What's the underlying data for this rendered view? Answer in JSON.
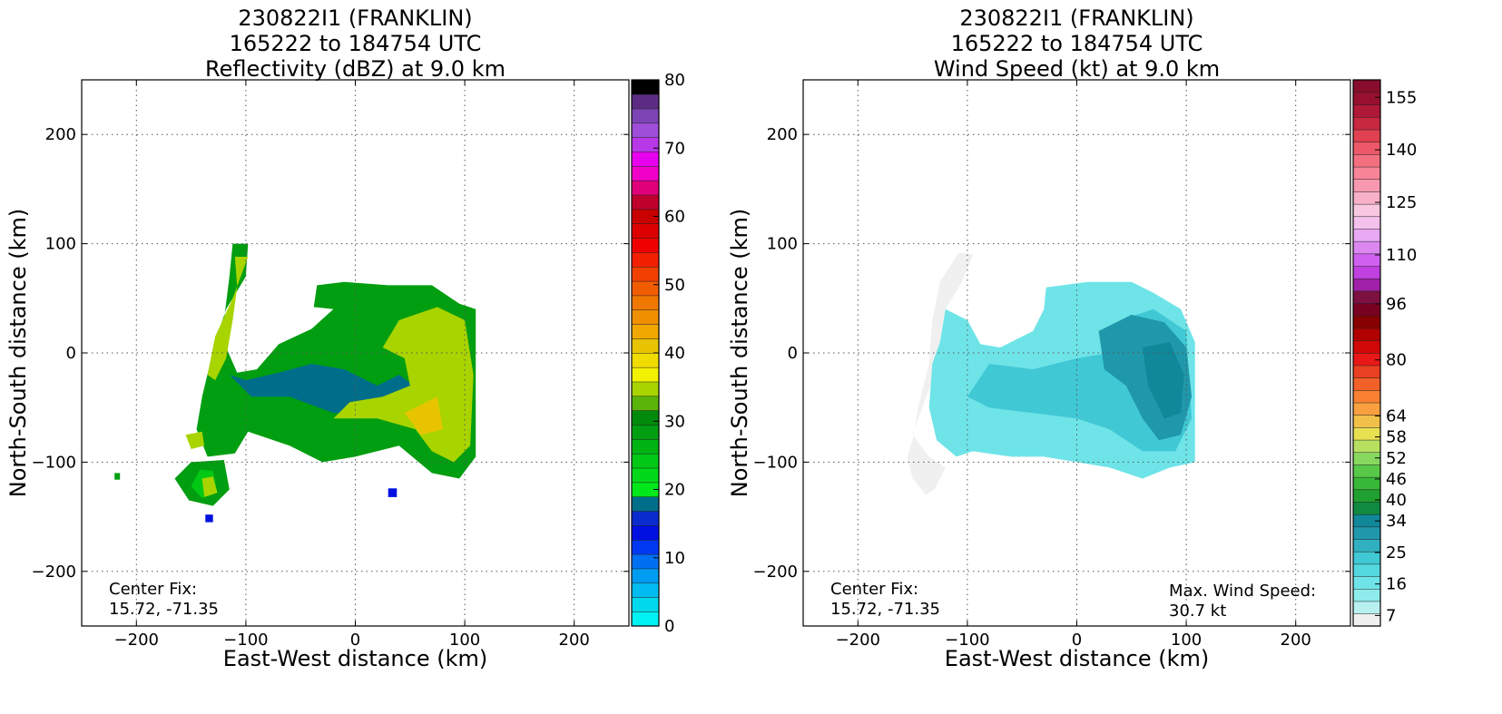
{
  "chart_data": [
    {
      "type": "heatmap",
      "title": [
        "230822I1 (FRANKLIN)",
        "165222 to 184754 UTC",
        "Reflectivity (dBZ) at 9.0 km"
      ],
      "xlabel": "East-West distance (km)",
      "ylabel": "North-South distance (km)",
      "xlim": [
        -250,
        250
      ],
      "ylim": [
        -250,
        250
      ],
      "xticks": [
        -200,
        -100,
        0,
        100,
        200
      ],
      "yticks": [
        -200,
        -100,
        0,
        100,
        200
      ],
      "grid": true,
      "center_fix_label": "Center Fix:",
      "center_fix_value": "15.72, -71.35",
      "colorbar": {
        "min": 0,
        "max": 80,
        "step": 2.5,
        "ticks": [
          0,
          10,
          20,
          30,
          40,
          50,
          60,
          70,
          80
        ],
        "colors": [
          "#00f2f2",
          "#00d8ec",
          "#00bcf0",
          "#009cf2",
          "#0070f2",
          "#0038f2",
          "#0010e0",
          "#0a2ccc",
          "#006e8a",
          "#00e81a",
          "#00d81a",
          "#00c814",
          "#00b414",
          "#009e10",
          "#008a0c",
          "#5ab40a",
          "#a8d400",
          "#f2f200",
          "#f0dc00",
          "#e8c400",
          "#f0a800",
          "#f09000",
          "#f07800",
          "#f25c00",
          "#f24000",
          "#f22000",
          "#f00000",
          "#dc0000",
          "#c80000",
          "#c0002c",
          "#e0007a",
          "#f000c8",
          "#e800f0",
          "#b838e8",
          "#9e4ed8",
          "#7c44b4",
          "#5c2c84",
          "#000000"
        ]
      },
      "field": [
        {
          "level": 13,
          "polygon": [
            [
              -112,
              100
            ],
            [
              -98,
              100
            ],
            [
              -100,
              70
            ],
            [
              -118,
              40
            ],
            [
              -128,
              10
            ],
            [
              -140,
              -40
            ],
            [
              -145,
              -70
            ],
            [
              -135,
              -95
            ],
            [
              -110,
              -92
            ],
            [
              -98,
              -72
            ],
            [
              -60,
              -85
            ],
            [
              -30,
              -100
            ],
            [
              0,
              -95
            ],
            [
              40,
              -85
            ],
            [
              70,
              -110
            ],
            [
              95,
              -115
            ],
            [
              110,
              -95
            ],
            [
              110,
              40
            ],
            [
              95,
              45
            ],
            [
              70,
              62
            ],
            [
              30,
              62
            ],
            [
              -10,
              65
            ],
            [
              -35,
              62
            ],
            [
              -38,
              42
            ],
            [
              -20,
              40
            ],
            [
              -40,
              22
            ],
            [
              -70,
              8
            ],
            [
              -90,
              -15
            ],
            [
              -108,
              -18
            ],
            [
              -118,
              5
            ],
            [
              -120,
              30
            ],
            [
              -115,
              70
            ]
          ]
        },
        {
          "level": 8,
          "polygon": [
            [
              -100,
              -25
            ],
            [
              -70,
              -18
            ],
            [
              -40,
              -10
            ],
            [
              -10,
              -15
            ],
            [
              20,
              -30
            ],
            [
              40,
              -20
            ],
            [
              60,
              -35
            ],
            [
              25,
              -55
            ],
            [
              -20,
              -55
            ],
            [
              -60,
              -40
            ],
            [
              -95,
              -40
            ],
            [
              -115,
              -20
            ]
          ]
        },
        {
          "level": 13,
          "polygon": [
            [
              -150,
              -100
            ],
            [
              -120,
              -98
            ],
            [
              -115,
              -125
            ],
            [
              -130,
              -140
            ],
            [
              -152,
              -135
            ],
            [
              -165,
              -115
            ]
          ]
        },
        {
          "level": 11,
          "polygon": [
            [
              -142,
              -107
            ],
            [
              -130,
              -108
            ],
            [
              -126,
              -128
            ],
            [
              -140,
              -133
            ],
            [
              -150,
              -122
            ]
          ]
        },
        {
          "level": 6,
          "polygon": [
            [
              -137,
              -148
            ],
            [
              -130,
              -148
            ],
            [
              -130,
              -155
            ],
            [
              -137,
              -155
            ]
          ]
        },
        {
          "level": 6,
          "polygon": [
            [
              30,
              -124
            ],
            [
              38,
              -124
            ],
            [
              38,
              -132
            ],
            [
              30,
              -132
            ]
          ]
        },
        {
          "level": 13,
          "polygon": [
            [
              -220,
              -110
            ],
            [
              -215,
              -110
            ],
            [
              -215,
              -116
            ],
            [
              -220,
              -116
            ]
          ]
        },
        {
          "level": 16,
          "polygon": [
            [
              -110,
              88
            ],
            [
              -98,
              88
            ],
            [
              -112,
              50
            ],
            [
              -128,
              15
            ],
            [
              -135,
              -20
            ],
            [
              -128,
              -25
            ],
            [
              -118,
              -5
            ],
            [
              -112,
              30
            ],
            [
              -108,
              60
            ]
          ]
        },
        {
          "level": 16,
          "polygon": [
            [
              40,
              30
            ],
            [
              75,
              42
            ],
            [
              100,
              30
            ],
            [
              108,
              -20
            ],
            [
              105,
              -85
            ],
            [
              90,
              -100
            ],
            [
              70,
              -90
            ],
            [
              55,
              -70
            ],
            [
              20,
              -60
            ],
            [
              -20,
              -60
            ],
            [
              -5,
              -45
            ],
            [
              25,
              -40
            ],
            [
              50,
              -30
            ],
            [
              45,
              -5
            ],
            [
              25,
              5
            ]
          ]
        },
        {
          "level": 16,
          "polygon": [
            [
              -155,
              -75
            ],
            [
              -140,
              -72
            ],
            [
              -138,
              -85
            ],
            [
              -150,
              -88
            ]
          ]
        },
        {
          "level": 16,
          "polygon": [
            [
              -140,
              -115
            ],
            [
              -130,
              -113
            ],
            [
              -126,
              -128
            ],
            [
              -138,
              -132
            ]
          ]
        },
        {
          "level": 19,
          "polygon": [
            [
              45,
              -55
            ],
            [
              75,
              -40
            ],
            [
              80,
              -70
            ],
            [
              60,
              -75
            ]
          ]
        }
      ]
    },
    {
      "type": "heatmap",
      "title": [
        "230822I1 (FRANKLIN)",
        "165222 to 184754 UTC",
        "Wind Speed (kt) at 9.0 km"
      ],
      "xlabel": "East-West distance (km)",
      "ylabel": "North-South distance (km)",
      "xlim": [
        -250,
        250
      ],
      "ylim": [
        -250,
        250
      ],
      "xticks": [
        -200,
        -100,
        0,
        100,
        200
      ],
      "yticks": [
        -200,
        -100,
        0,
        100,
        200
      ],
      "grid": true,
      "center_fix_label": "Center Fix:",
      "center_fix_value": "15.72, -71.35",
      "max_wind_label": "Max. Wind Speed:",
      "max_wind_value": "30.7 kt",
      "colorbar": {
        "min": 4,
        "max": 160,
        "step": 3,
        "ticks": [
          7,
          16,
          25,
          34,
          40,
          46,
          52,
          58,
          64,
          80,
          96,
          110,
          125,
          140,
          155
        ],
        "colors": [
          "#f0f0f0",
          "#b8f0f0",
          "#8eecec",
          "#6ee4e8",
          "#54d8e0",
          "#40c8d4",
          "#30b0c0",
          "#2098ac",
          "#10889a",
          "#108a40",
          "#20a030",
          "#38b838",
          "#58c848",
          "#88d860",
          "#b8e060",
          "#e8e050",
          "#f0c048",
          "#f8a040",
          "#f88030",
          "#f06028",
          "#e84020",
          "#e81818",
          "#d00808",
          "#b00000",
          "#880000",
          "#780020",
          "#7c1040",
          "#a020a8",
          "#c040e0",
          "#d060f0",
          "#dc88f0",
          "#e8a8f4",
          "#f4c0ec",
          "#f8c8e0",
          "#f8b0c8",
          "#f898b0",
          "#f88498",
          "#f47080",
          "#ec5868",
          "#e04050",
          "#c82840",
          "#b01838",
          "#981030",
          "#880c2c"
        ]
      },
      "field": [
        {
          "level": 0,
          "polygon": [
            [
              -108,
              92
            ],
            [
              -95,
              90
            ],
            [
              -105,
              65
            ],
            [
              -120,
              40
            ],
            [
              -125,
              10
            ],
            [
              -130,
              -20
            ],
            [
              -145,
              -60
            ],
            [
              -150,
              -75
            ],
            [
              -135,
              -95
            ],
            [
              -120,
              -105
            ],
            [
              -130,
              -125
            ],
            [
              -138,
              -130
            ],
            [
              -150,
              -115
            ],
            [
              -155,
              -95
            ],
            [
              -150,
              -80
            ],
            [
              -145,
              -50
            ],
            [
              -135,
              -10
            ],
            [
              -132,
              30
            ],
            [
              -125,
              65
            ]
          ]
        },
        {
          "level": 3,
          "polygon": [
            [
              -120,
              40
            ],
            [
              -100,
              30
            ],
            [
              -88,
              8
            ],
            [
              -70,
              5
            ],
            [
              -40,
              20
            ],
            [
              -30,
              40
            ],
            [
              -28,
              60
            ],
            [
              10,
              65
            ],
            [
              50,
              65
            ],
            [
              70,
              55
            ],
            [
              95,
              40
            ],
            [
              108,
              10
            ],
            [
              108,
              -100
            ],
            [
              85,
              -105
            ],
            [
              60,
              -115
            ],
            [
              30,
              -105
            ],
            [
              0,
              -100
            ],
            [
              -30,
              -95
            ],
            [
              -60,
              -95
            ],
            [
              -95,
              -90
            ],
            [
              -110,
              -95
            ],
            [
              -128,
              -80
            ],
            [
              -135,
              -50
            ],
            [
              -132,
              -10
            ],
            [
              -125,
              10
            ]
          ]
        },
        {
          "level": 5,
          "polygon": [
            [
              -80,
              -10
            ],
            [
              -40,
              -15
            ],
            [
              0,
              -5
            ],
            [
              30,
              0
            ],
            [
              40,
              30
            ],
            [
              70,
              40
            ],
            [
              100,
              20
            ],
            [
              105,
              -60
            ],
            [
              90,
              -90
            ],
            [
              60,
              -90
            ],
            [
              30,
              -70
            ],
            [
              0,
              -60
            ],
            [
              -40,
              -55
            ],
            [
              -80,
              -50
            ],
            [
              -100,
              -40
            ]
          ]
        },
        {
          "level": 7,
          "polygon": [
            [
              20,
              20
            ],
            [
              50,
              35
            ],
            [
              80,
              28
            ],
            [
              100,
              5
            ],
            [
              105,
              -40
            ],
            [
              95,
              -75
            ],
            [
              75,
              -80
            ],
            [
              60,
              -60
            ],
            [
              45,
              -30
            ],
            [
              25,
              -15
            ]
          ]
        },
        {
          "level": 8,
          "polygon": [
            [
              60,
              5
            ],
            [
              85,
              10
            ],
            [
              98,
              -20
            ],
            [
              95,
              -55
            ],
            [
              80,
              -60
            ],
            [
              65,
              -30
            ]
          ]
        }
      ]
    }
  ]
}
